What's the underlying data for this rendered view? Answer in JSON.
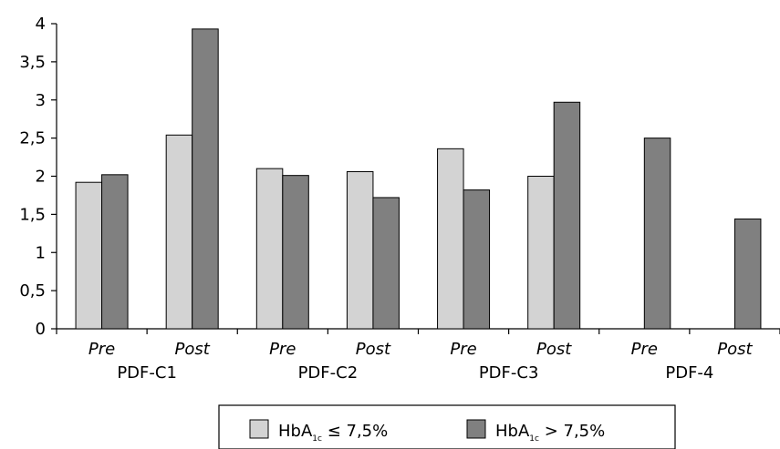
{
  "chart_data": {
    "type": "bar",
    "groups": [
      "PDF-C1",
      "PDF-C2",
      "PDF-C3",
      "PDF-4"
    ],
    "subcategories": [
      "Pre",
      "Post",
      "Pre",
      "Post",
      "Pre",
      "Post",
      "Pre",
      "Post"
    ],
    "series": [
      {
        "name": "HbA1c ≤ 7,5%",
        "color": "#d3d3d3",
        "values": [
          1.92,
          2.54,
          2.1,
          2.06,
          2.36,
          2.0,
          null,
          null
        ]
      },
      {
        "name": "HbA1c > 7,5%",
        "color": "#808080",
        "values": [
          2.02,
          3.93,
          2.01,
          1.72,
          1.82,
          2.97,
          2.5,
          1.44
        ]
      }
    ],
    "yticks": [
      "0",
      "0,5",
      "1",
      "1,5",
      "2",
      "2,5",
      "3",
      "3,5",
      "4"
    ],
    "ylim": [
      0,
      4
    ],
    "grid": false,
    "legend_position": "bottom"
  },
  "legend": {
    "items": [
      {
        "prefix": "HbA",
        "sub": "1c",
        "suffix": " ≤ 7,5%"
      },
      {
        "prefix": "HbA",
        "sub": "1c",
        "suffix": " > 7,5%"
      }
    ]
  }
}
